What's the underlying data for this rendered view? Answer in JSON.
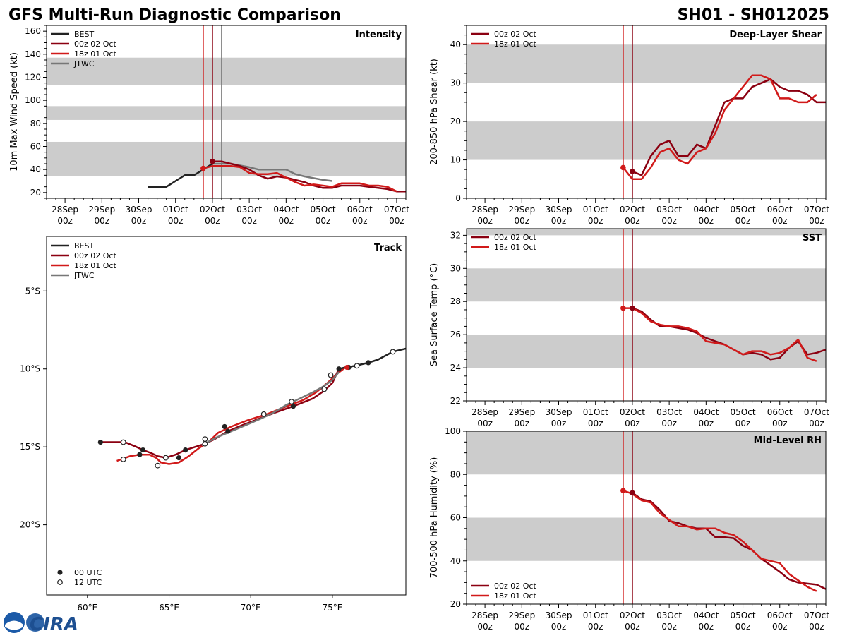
{
  "header": {
    "title": "GFS Multi-Run Diagnostic Comparison",
    "storm_id": "SH01 - SH012025"
  },
  "logo": {
    "text": "CIRA"
  },
  "colors": {
    "best": "#222222",
    "run00z": "#8b0011",
    "run18z": "#d11a1a",
    "jtwc": "#777777",
    "band": "#cccccc"
  },
  "time_axis": {
    "start_day": 27.5,
    "end_day": 37.25,
    "tick_days": [
      28,
      29,
      30,
      31,
      32,
      33,
      34,
      35,
      36,
      37
    ],
    "tick_labels": [
      "28Sep",
      "29Sep",
      "30Sep",
      "01Oct",
      "02Oct",
      "03Oct",
      "04Oct",
      "05Oct",
      "06Oct",
      "07Oct"
    ],
    "tick_sublabel": "00z"
  },
  "chart_data": [
    {
      "id": "intensity",
      "type": "line",
      "title": "Intensity",
      "ylabel": "10m Max Wind Speed (kt)",
      "ylim": [
        15,
        165
      ],
      "yticks": [
        20,
        40,
        60,
        80,
        100,
        120,
        140,
        160
      ],
      "bands": [
        [
          34,
          64
        ],
        [
          83,
          95
        ],
        [
          113,
          137
        ]
      ],
      "vlines": [
        {
          "x": 31.75,
          "series": "run18z"
        },
        {
          "x": 32.0,
          "series": "run00z"
        },
        {
          "x": 32.25,
          "series": "jtwc"
        }
      ],
      "legend": [
        "BEST",
        "00z 02 Oct",
        "18z 01 Oct",
        "JTWC"
      ],
      "legend_keys": [
        "best",
        "run00z",
        "run18z",
        "jtwc"
      ],
      "legend_position": "top-left",
      "series": [
        {
          "key": "best",
          "name": "BEST",
          "x": [
            30.25,
            30.5,
            30.75,
            31.0,
            31.25,
            31.5,
            31.75,
            32.0
          ],
          "y": [
            25,
            25,
            25,
            30,
            35,
            35,
            40,
            45
          ]
        },
        {
          "key": "jtwc",
          "name": "JTWC",
          "x": [
            32.0,
            32.5,
            33.0,
            33.25,
            33.5,
            34.0,
            34.25,
            34.5,
            35.0,
            35.25
          ],
          "y": [
            45,
            45,
            42,
            40,
            40,
            40,
            36,
            34,
            31,
            30
          ]
        },
        {
          "key": "run00z",
          "name": "00z 02 Oct",
          "x": [
            32.0,
            32.25,
            32.5,
            32.75,
            33.0,
            33.25,
            33.5,
            33.75,
            34.0,
            34.25,
            34.5,
            34.75,
            35.0,
            35.25,
            35.5,
            35.75,
            36.0,
            36.25,
            36.5,
            36.75,
            37.0,
            37.25
          ],
          "y": [
            47,
            47,
            45,
            43,
            40,
            35,
            32,
            34,
            33,
            31,
            29,
            26,
            24,
            24,
            26,
            26,
            26,
            25,
            24,
            23,
            21,
            21
          ]
        },
        {
          "key": "run18z",
          "name": "18z 01 Oct",
          "x": [
            31.75,
            32.0,
            32.25,
            32.5,
            32.75,
            33.0,
            33.25,
            33.5,
            33.75,
            34.0,
            34.25,
            34.5,
            34.75,
            35.0,
            35.25,
            35.5,
            35.75,
            36.0,
            36.25,
            36.5,
            36.75,
            37.0
          ],
          "y": [
            41,
            43,
            43,
            43,
            42,
            37,
            36,
            36,
            37,
            33,
            29,
            26,
            27,
            26,
            25,
            28,
            28,
            28,
            26,
            26,
            25,
            21
          ]
        }
      ],
      "markers": [
        {
          "series": "run18z",
          "x": 31.75,
          "y": 41
        },
        {
          "series": "run00z",
          "x": 32.0,
          "y": 47
        }
      ]
    },
    {
      "id": "shear",
      "type": "line",
      "title": "Deep-Layer Shear",
      "ylabel": "200-850 hPa Shear (kt)",
      "ylim": [
        0,
        45
      ],
      "yticks": [
        0,
        10,
        20,
        30,
        40
      ],
      "bands": [
        [
          10,
          20
        ],
        [
          30,
          40
        ]
      ],
      "vlines": [
        {
          "x": 31.75,
          "series": "run18z"
        },
        {
          "x": 32.0,
          "series": "run00z"
        }
      ],
      "legend": [
        "00z 02 Oct",
        "18z 01 Oct"
      ],
      "legend_keys": [
        "run00z",
        "run18z"
      ],
      "legend_position": "top-left",
      "series": [
        {
          "key": "run00z",
          "name": "00z 02 Oct",
          "x": [
            32.0,
            32.25,
            32.5,
            32.75,
            33.0,
            33.25,
            33.5,
            33.75,
            34.0,
            34.25,
            34.5,
            34.75,
            35.0,
            35.25,
            35.5,
            35.75,
            36.0,
            36.25,
            36.5,
            36.75,
            37.0,
            37.25
          ],
          "y": [
            7,
            6,
            11,
            14,
            15,
            11,
            11,
            14,
            13,
            19,
            25,
            26,
            26,
            29,
            30,
            31,
            29,
            28,
            28,
            27,
            25,
            25
          ]
        },
        {
          "key": "run18z",
          "name": "18z 01 Oct",
          "x": [
            31.75,
            32.0,
            32.25,
            32.5,
            32.75,
            33.0,
            33.25,
            33.5,
            33.75,
            34.0,
            34.25,
            34.5,
            34.75,
            35.0,
            35.25,
            35.5,
            35.75,
            36.0,
            36.25,
            36.5,
            36.75,
            37.0
          ],
          "y": [
            8,
            5,
            5,
            8,
            12,
            13,
            10,
            9,
            12,
            13,
            17,
            23,
            26,
            29,
            32,
            32,
            31,
            26,
            26,
            25,
            25,
            27
          ]
        }
      ],
      "markers": [
        {
          "series": "run18z",
          "x": 31.75,
          "y": 8
        },
        {
          "series": "run00z",
          "x": 32.0,
          "y": 7
        }
      ]
    },
    {
      "id": "sst",
      "type": "line",
      "title": "SST",
      "ylabel": "Sea Surface Temp (°C)",
      "ylim": [
        22,
        32.4
      ],
      "yticks": [
        22,
        24,
        26,
        28,
        30,
        32
      ],
      "bands": [
        [
          24,
          26
        ],
        [
          28,
          30
        ],
        [
          32,
          32.4
        ]
      ],
      "vlines": [
        {
          "x": 31.75,
          "series": "run18z"
        },
        {
          "x": 32.0,
          "series": "run00z"
        }
      ],
      "legend": [
        "00z 02 Oct",
        "18z 01 Oct"
      ],
      "legend_keys": [
        "run00z",
        "run18z"
      ],
      "legend_position": "top-left",
      "series": [
        {
          "key": "run00z",
          "name": "00z 02 Oct",
          "x": [
            32.0,
            32.25,
            32.5,
            32.75,
            33.0,
            33.25,
            33.5,
            33.75,
            34.0,
            34.25,
            34.5,
            34.75,
            35.0,
            35.25,
            35.5,
            35.75,
            36.0,
            36.25,
            36.5,
            36.75,
            37.0,
            37.25
          ],
          "y": [
            27.6,
            27.4,
            26.9,
            26.5,
            26.5,
            26.4,
            26.3,
            26.1,
            25.8,
            25.6,
            25.4,
            25.1,
            24.8,
            24.9,
            24.8,
            24.5,
            24.6,
            25.2,
            25.6,
            24.8,
            24.9,
            25.1
          ]
        },
        {
          "key": "run18z",
          "name": "18z 01 Oct",
          "x": [
            31.75,
            32.0,
            32.25,
            32.5,
            32.75,
            33.0,
            33.25,
            33.5,
            33.75,
            34.0,
            34.25,
            34.5,
            34.75,
            35.0,
            35.25,
            35.5,
            35.75,
            36.0,
            36.25,
            36.5,
            36.75,
            37.0
          ],
          "y": [
            27.6,
            27.6,
            27.3,
            26.8,
            26.6,
            26.5,
            26.5,
            26.4,
            26.2,
            25.6,
            25.5,
            25.4,
            25.1,
            24.8,
            25.0,
            25.0,
            24.8,
            24.9,
            25.2,
            25.7,
            24.6,
            24.4
          ]
        }
      ],
      "markers": [
        {
          "series": "run18z",
          "x": 31.75,
          "y": 27.6
        },
        {
          "series": "run00z",
          "x": 32.0,
          "y": 27.6
        }
      ]
    },
    {
      "id": "rh",
      "type": "line",
      "title": "Mid-Level RH",
      "ylabel": "700-500 hPa Humidity (%)",
      "ylim": [
        20,
        100
      ],
      "yticks": [
        20,
        40,
        60,
        80,
        100
      ],
      "bands": [
        [
          40,
          60
        ],
        [
          80,
          100
        ]
      ],
      "vlines": [
        {
          "x": 31.75,
          "series": "run18z"
        },
        {
          "x": 32.0,
          "series": "run00z"
        }
      ],
      "legend": [
        "00z 02 Oct",
        "18z 01 Oct"
      ],
      "legend_keys": [
        "run00z",
        "run18z"
      ],
      "legend_position": "bottom-left",
      "series": [
        {
          "key": "run00z",
          "name": "00z 02 Oct",
          "x": [
            32.0,
            32.25,
            32.5,
            32.75,
            33.0,
            33.25,
            33.5,
            33.75,
            34.0,
            34.25,
            34.5,
            34.75,
            35.0,
            35.25,
            35.5,
            35.75,
            36.0,
            36.25,
            36.5,
            36.75,
            37.0,
            37.25
          ],
          "y": [
            71.5,
            68.5,
            67.5,
            63.5,
            58.5,
            57.5,
            56,
            55,
            55,
            51,
            51,
            50.5,
            47,
            45,
            41,
            38,
            35,
            31.5,
            30,
            29.5,
            29,
            27
          ]
        },
        {
          "key": "run18z",
          "name": "18z 01 Oct",
          "x": [
            31.75,
            32.0,
            32.25,
            32.5,
            32.75,
            33.0,
            33.25,
            33.5,
            33.75,
            34.0,
            34.25,
            34.5,
            34.75,
            35.0,
            35.25,
            35.5,
            35.75,
            36.0,
            36.25,
            36.5,
            36.75,
            37.0
          ],
          "y": [
            72.5,
            71,
            68,
            67,
            62,
            59,
            56,
            56,
            54.5,
            55,
            55,
            53,
            52,
            49,
            45,
            41,
            40,
            39,
            34,
            31,
            28,
            26
          ]
        }
      ],
      "markers": [
        {
          "series": "run18z",
          "x": 31.75,
          "y": 72.5
        },
        {
          "series": "run00z",
          "x": 32.0,
          "y": 71.5
        }
      ]
    },
    {
      "id": "track",
      "type": "line",
      "title": "Track",
      "xlim": [
        57.5,
        79.5
      ],
      "ylim": [
        -24.5,
        -1.5
      ],
      "xticks": [
        60,
        65,
        70,
        75
      ],
      "xtick_labels": [
        "60°E",
        "65°E",
        "70°E",
        "75°E"
      ],
      "yticks": [
        -5,
        -10,
        -15,
        -20
      ],
      "ytick_labels": [
        "5°S",
        "10°S",
        "15°S",
        "20°S"
      ],
      "legend": [
        "BEST",
        "00z 02 Oct",
        "18z 01 Oct",
        "JTWC"
      ],
      "legend_keys": [
        "best",
        "run00z",
        "run18z",
        "jtwc"
      ],
      "marker_legend": [
        "00 UTC",
        "12 UTC"
      ],
      "legend_position": "top-left",
      "series": [
        {
          "key": "best",
          "name": "BEST",
          "lon": [
            79.5,
            78.7,
            77.8,
            77.2,
            76.4,
            75.8,
            75.4
          ],
          "lat": [
            -8.7,
            -8.9,
            -9.4,
            -9.6,
            -9.8,
            -9.9,
            -10.0
          ]
        },
        {
          "key": "jtwc",
          "name": "JTWC",
          "lon": [
            75.4,
            75.0,
            74.5,
            73.8,
            73.0,
            72.2,
            71.4,
            70.6,
            69.7,
            68.8,
            67.9,
            67.0
          ],
          "lat": [
            -10.2,
            -10.7,
            -11.1,
            -11.5,
            -11.9,
            -12.3,
            -12.8,
            -13.2,
            -13.6,
            -14.0,
            -14.4,
            -14.9
          ]
        },
        {
          "key": "run00z",
          "name": "00z 02 Oct",
          "lon": [
            75.4,
            75.0,
            74.5,
            73.8,
            72.6,
            71.5,
            70.5,
            69.5,
            68.6,
            67.8,
            67.2,
            66.6,
            66.0,
            65.4,
            64.8,
            64.3,
            63.9,
            63.4,
            63.0,
            62.3,
            61.6,
            60.8
          ],
          "lat": [
            -10.0,
            -10.9,
            -11.4,
            -11.9,
            -12.4,
            -12.8,
            -13.2,
            -13.6,
            -14.0,
            -14.5,
            -14.8,
            -15.0,
            -15.2,
            -15.5,
            -15.7,
            -15.6,
            -15.4,
            -15.2,
            -15.0,
            -14.7,
            -14.7,
            -14.7
          ]
        },
        {
          "key": "run18z",
          "name": "18z 01 Oct",
          "lon": [
            75.8,
            75.3,
            74.7,
            74.0,
            73.2,
            72.2,
            71.0,
            69.8,
            68.8,
            68.0,
            67.4,
            66.8,
            66.2,
            65.6,
            65.0,
            64.5,
            64.2,
            63.8,
            63.2,
            62.6,
            61.8
          ],
          "lat": [
            -9.9,
            -10.3,
            -10.9,
            -11.5,
            -12.0,
            -12.4,
            -12.9,
            -13.3,
            -13.7,
            -14.1,
            -14.7,
            -15.1,
            -15.6,
            -16.0,
            -16.1,
            -16.0,
            -15.7,
            -15.5,
            -15.5,
            -15.6,
            -15.9
          ]
        }
      ],
      "points_00utc": [
        [
          75.4,
          -10.0
        ],
        [
          77.2,
          -9.6
        ],
        [
          72.6,
          -12.4
        ],
        [
          68.6,
          -14.0
        ],
        [
          68.4,
          -13.7
        ],
        [
          66.0,
          -15.2
        ],
        [
          63.4,
          -15.2
        ],
        [
          65.6,
          -15.7
        ],
        [
          63.2,
          -15.5
        ],
        [
          60.8,
          -14.7
        ],
        [
          76.0,
          -9.9
        ]
      ],
      "points_12utc": [
        [
          78.7,
          -8.9
        ],
        [
          76.5,
          -9.8
        ],
        [
          74.9,
          -10.4
        ],
        [
          74.5,
          -11.3
        ],
        [
          72.5,
          -12.1
        ],
        [
          70.8,
          -12.9
        ],
        [
          67.2,
          -14.5
        ],
        [
          67.2,
          -14.8
        ],
        [
          64.8,
          -15.7
        ],
        [
          64.3,
          -16.2
        ],
        [
          62.2,
          -14.7
        ],
        [
          62.2,
          -15.8
        ]
      ]
    }
  ]
}
